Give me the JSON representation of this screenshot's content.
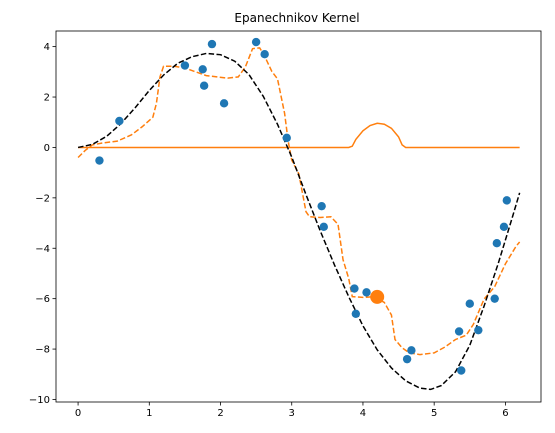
{
  "chart_data": {
    "type": "scatter",
    "title": "Epanechnikov Kernel",
    "xlabel": "",
    "ylabel": "",
    "xlim": [
      -0.31,
      6.5
    ],
    "ylim": [
      -10.1,
      4.62
    ],
    "xticks": [
      0,
      1,
      2,
      3,
      4,
      5,
      6
    ],
    "yticks": [
      -10,
      -8,
      -6,
      -4,
      -2,
      0,
      2,
      4
    ],
    "grid": false,
    "colors": {
      "scatter": "#1f77b4",
      "orange": "#ff7f0e",
      "true_function": "#000000"
    },
    "series": [
      {
        "kind": "scatter",
        "points": [
          [
            0.3,
            -0.52
          ],
          [
            0.58,
            1.05
          ],
          [
            1.5,
            3.25
          ],
          [
            1.75,
            3.1
          ],
          [
            1.77,
            2.45
          ],
          [
            1.88,
            4.1
          ],
          [
            2.05,
            1.75
          ],
          [
            2.5,
            4.18
          ],
          [
            2.62,
            3.7
          ],
          [
            2.93,
            0.38
          ],
          [
            3.42,
            -2.33
          ],
          [
            3.45,
            -3.15
          ],
          [
            3.88,
            -5.6
          ],
          [
            3.9,
            -6.6
          ],
          [
            4.05,
            -5.75
          ],
          [
            4.62,
            -8.4
          ],
          [
            4.68,
            -8.05
          ],
          [
            5.35,
            -7.3
          ],
          [
            5.38,
            -8.85
          ],
          [
            5.5,
            -6.2
          ],
          [
            5.62,
            -7.25
          ],
          [
            5.85,
            -6.0
          ],
          [
            5.88,
            -3.8
          ],
          [
            5.98,
            -3.15
          ],
          [
            6.02,
            -2.1
          ]
        ]
      },
      {
        "kind": "highlight-point",
        "points": [
          [
            4.2,
            -5.93
          ]
        ]
      },
      {
        "kind": "true-function-dashed",
        "points": [
          [
            0.0,
            0.0
          ],
          [
            0.2,
            0.12
          ],
          [
            0.4,
            0.44
          ],
          [
            0.6,
            0.94
          ],
          [
            0.8,
            1.57
          ],
          [
            1.0,
            2.26
          ],
          [
            1.2,
            2.87
          ],
          [
            1.4,
            3.34
          ],
          [
            1.6,
            3.6
          ],
          [
            1.8,
            3.73
          ],
          [
            2.0,
            3.68
          ],
          [
            2.2,
            3.42
          ],
          [
            2.4,
            2.89
          ],
          [
            2.6,
            2.03
          ],
          [
            2.8,
            0.92
          ],
          [
            3.0,
            -0.38
          ],
          [
            3.2,
            -1.87
          ],
          [
            3.4,
            -3.31
          ],
          [
            3.6,
            -4.66
          ],
          [
            3.8,
            -5.92
          ],
          [
            4.0,
            -7.08
          ],
          [
            4.2,
            -8.03
          ],
          [
            4.4,
            -8.75
          ],
          [
            4.6,
            -9.26
          ],
          [
            4.8,
            -9.55
          ],
          [
            4.95,
            -9.6
          ],
          [
            5.1,
            -9.45
          ],
          [
            5.3,
            -8.9
          ],
          [
            5.5,
            -7.85
          ],
          [
            5.7,
            -6.3
          ],
          [
            5.9,
            -4.6
          ],
          [
            6.1,
            -2.75
          ],
          [
            6.2,
            -1.8
          ]
        ]
      },
      {
        "kind": "kernel-regression-dashed",
        "points": [
          [
            0.0,
            -0.4
          ],
          [
            0.1,
            -0.12
          ],
          [
            0.2,
            0.1
          ],
          [
            0.35,
            0.18
          ],
          [
            0.55,
            0.25
          ],
          [
            0.75,
            0.5
          ],
          [
            0.9,
            0.82
          ],
          [
            1.05,
            1.2
          ],
          [
            1.1,
            1.75
          ],
          [
            1.15,
            2.8
          ],
          [
            1.2,
            3.22
          ],
          [
            1.35,
            3.22
          ],
          [
            1.5,
            3.15
          ],
          [
            1.65,
            3.0
          ],
          [
            1.8,
            2.85
          ],
          [
            1.95,
            2.8
          ],
          [
            2.1,
            2.75
          ],
          [
            2.25,
            2.8
          ],
          [
            2.35,
            3.2
          ],
          [
            2.45,
            3.92
          ],
          [
            2.55,
            3.95
          ],
          [
            2.62,
            3.62
          ],
          [
            2.72,
            3.02
          ],
          [
            2.8,
            2.72
          ],
          [
            2.9,
            1.35
          ],
          [
            2.95,
            0.25
          ],
          [
            3.0,
            -0.5
          ],
          [
            3.1,
            -1.05
          ],
          [
            3.2,
            -2.55
          ],
          [
            3.25,
            -2.75
          ],
          [
            3.4,
            -2.78
          ],
          [
            3.55,
            -2.75
          ],
          [
            3.65,
            -3.05
          ],
          [
            3.72,
            -4.45
          ],
          [
            3.8,
            -5.2
          ],
          [
            3.85,
            -5.92
          ],
          [
            4.0,
            -5.95
          ],
          [
            4.15,
            -5.92
          ],
          [
            4.3,
            -6.15
          ],
          [
            4.4,
            -6.65
          ],
          [
            4.45,
            -7.62
          ],
          [
            4.55,
            -7.95
          ],
          [
            4.65,
            -8.15
          ],
          [
            4.8,
            -8.22
          ],
          [
            5.0,
            -8.15
          ],
          [
            5.15,
            -7.92
          ],
          [
            5.3,
            -7.62
          ],
          [
            5.45,
            -7.45
          ],
          [
            5.55,
            -7.02
          ],
          [
            5.7,
            -6.02
          ],
          [
            5.85,
            -5.52
          ],
          [
            6.0,
            -4.62
          ],
          [
            6.15,
            -3.92
          ],
          [
            6.2,
            -3.75
          ]
        ]
      },
      {
        "kind": "kernel-weight-solid",
        "points": [
          [
            0.0,
            0.0
          ],
          [
            3.8,
            0.0
          ],
          [
            3.85,
            0.05
          ],
          [
            3.9,
            0.32
          ],
          [
            4.0,
            0.66
          ],
          [
            4.1,
            0.87
          ],
          [
            4.2,
            0.96
          ],
          [
            4.3,
            0.92
          ],
          [
            4.4,
            0.76
          ],
          [
            4.5,
            0.42
          ],
          [
            4.55,
            0.1
          ],
          [
            4.6,
            0.0
          ],
          [
            6.2,
            0.0
          ]
        ]
      }
    ]
  }
}
